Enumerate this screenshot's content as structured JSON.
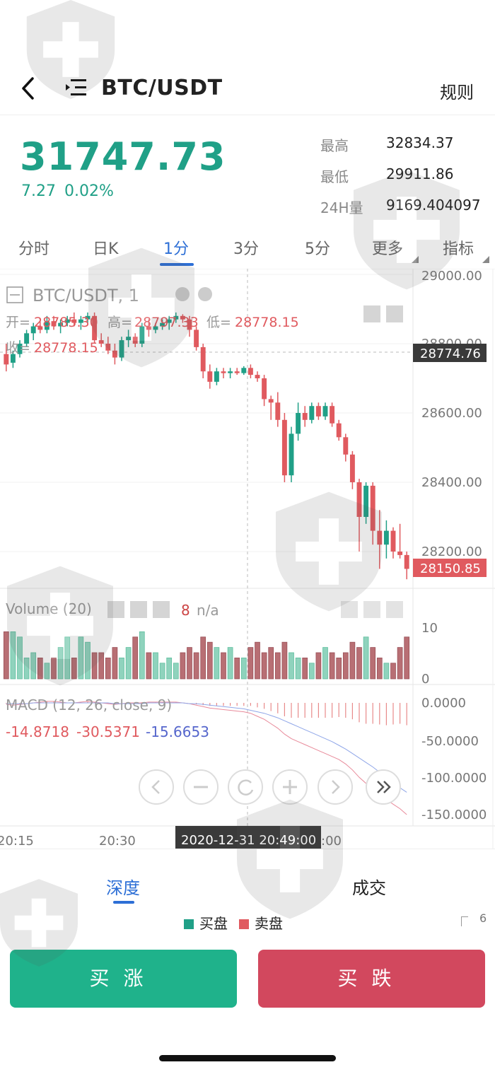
{
  "header": {
    "pair": "BTC/USDT",
    "rules_label": "规则"
  },
  "ticker": {
    "last_price": "31747.73",
    "change_abs": "7.27",
    "change_pct": "0.02%",
    "stats": [
      {
        "label": "最高",
        "value": "32834.37"
      },
      {
        "label": "最低",
        "value": "29911.86"
      },
      {
        "label": "24H量",
        "value": "9169.404097"
      }
    ]
  },
  "tabs": [
    "分时",
    "日K",
    "1分",
    "3分",
    "5分",
    "更多",
    "指标"
  ],
  "active_tab": "1分",
  "kline": {
    "header": "BTC/USDT, 1",
    "open_label": "开=",
    "open": "28785.30",
    "high_label": "高=",
    "high": "28797.33",
    "low_label": "低=",
    "low": "28778.15",
    "close_label": "收=",
    "close": "28778.15",
    "cursor_price": "28774.76",
    "last_price_tag": "28150.85",
    "cursor_time": "2020-12-31 20:49:00",
    "y_ticks": [
      "29000.00",
      "28800.00",
      "28600.00",
      "28400.00",
      "28200.00"
    ],
    "x_ticks": [
      "20:15",
      "20:30",
      ":00"
    ],
    "volume_label": "Volume (20)",
    "volume_value": "8",
    "volume_na": "n/a",
    "volume_ticks": [
      "10",
      "0"
    ],
    "macd_label": "MACD (12, 26, close, 9)",
    "macd_values": [
      "-14.8718",
      "-30.5371",
      "-15.6653"
    ],
    "macd_ticks": [
      "0.0000",
      "-50.0000",
      "-100.0000",
      "-150.0000"
    ]
  },
  "chart_data": {
    "type": "candlestick",
    "interval": "1分",
    "ylim": [
      28050,
      29000
    ],
    "candles": [
      {
        "o": 28770,
        "h": 28800,
        "l": 28720,
        "c": 28740
      },
      {
        "o": 28745,
        "h": 28780,
        "l": 28730,
        "c": 28770
      },
      {
        "o": 28770,
        "h": 28810,
        "l": 28760,
        "c": 28800
      },
      {
        "o": 28800,
        "h": 28840,
        "l": 28790,
        "c": 28830
      },
      {
        "o": 28830,
        "h": 28860,
        "l": 28810,
        "c": 28850
      },
      {
        "o": 28850,
        "h": 28870,
        "l": 28830,
        "c": 28840
      },
      {
        "o": 28840,
        "h": 28880,
        "l": 28830,
        "c": 28865
      },
      {
        "o": 28865,
        "h": 28880,
        "l": 28840,
        "c": 28850
      },
      {
        "o": 28850,
        "h": 28870,
        "l": 28830,
        "c": 28860
      },
      {
        "o": 28860,
        "h": 28880,
        "l": 28850,
        "c": 28870
      },
      {
        "o": 28870,
        "h": 28890,
        "l": 28850,
        "c": 28860
      },
      {
        "o": 28860,
        "h": 28880,
        "l": 28840,
        "c": 28870
      },
      {
        "o": 28870,
        "h": 28890,
        "l": 28860,
        "c": 28880
      },
      {
        "o": 28880,
        "h": 28890,
        "l": 28800,
        "c": 28810
      },
      {
        "o": 28810,
        "h": 28830,
        "l": 28790,
        "c": 28800
      },
      {
        "o": 28800,
        "h": 28820,
        "l": 28770,
        "c": 28780
      },
      {
        "o": 28780,
        "h": 28800,
        "l": 28740,
        "c": 28760
      },
      {
        "o": 28760,
        "h": 28820,
        "l": 28750,
        "c": 28810
      },
      {
        "o": 28810,
        "h": 28840,
        "l": 28790,
        "c": 28820
      },
      {
        "o": 28820,
        "h": 28830,
        "l": 28790,
        "c": 28800
      },
      {
        "o": 28800,
        "h": 28860,
        "l": 28790,
        "c": 28850
      },
      {
        "o": 28850,
        "h": 28870,
        "l": 28820,
        "c": 28840
      },
      {
        "o": 28840,
        "h": 28860,
        "l": 28830,
        "c": 28850
      },
      {
        "o": 28850,
        "h": 28870,
        "l": 28840,
        "c": 28860
      },
      {
        "o": 28860,
        "h": 28880,
        "l": 28840,
        "c": 28870
      },
      {
        "o": 28870,
        "h": 28890,
        "l": 28860,
        "c": 28880
      },
      {
        "o": 28880,
        "h": 28885,
        "l": 28860,
        "c": 28870
      },
      {
        "o": 28870,
        "h": 28880,
        "l": 28820,
        "c": 28840
      },
      {
        "o": 28840,
        "h": 28850,
        "l": 28780,
        "c": 28790
      },
      {
        "o": 28790,
        "h": 28800,
        "l": 28700,
        "c": 28720
      },
      {
        "o": 28720,
        "h": 28740,
        "l": 28670,
        "c": 28690
      },
      {
        "o": 28690,
        "h": 28730,
        "l": 28680,
        "c": 28720
      },
      {
        "o": 28720,
        "h": 28730,
        "l": 28700,
        "c": 28715
      },
      {
        "o": 28715,
        "h": 28730,
        "l": 28700,
        "c": 28720
      },
      {
        "o": 28720,
        "h": 28730,
        "l": 28710,
        "c": 28715
      },
      {
        "o": 28715,
        "h": 28735,
        "l": 28710,
        "c": 28730
      },
      {
        "o": 28730,
        "h": 28740,
        "l": 28700,
        "c": 28710
      },
      {
        "o": 28710,
        "h": 28720,
        "l": 28690,
        "c": 28700
      },
      {
        "o": 28700,
        "h": 28710,
        "l": 28620,
        "c": 28640
      },
      {
        "o": 28640,
        "h": 28650,
        "l": 28580,
        "c": 28630
      },
      {
        "o": 28630,
        "h": 28660,
        "l": 28560,
        "c": 28580
      },
      {
        "o": 28580,
        "h": 28600,
        "l": 28400,
        "c": 28420
      },
      {
        "o": 28420,
        "h": 28560,
        "l": 28400,
        "c": 28540
      },
      {
        "o": 28540,
        "h": 28630,
        "l": 28520,
        "c": 28600
      },
      {
        "o": 28600,
        "h": 28620,
        "l": 28560,
        "c": 28580
      },
      {
        "o": 28580,
        "h": 28630,
        "l": 28570,
        "c": 28620
      },
      {
        "o": 28620,
        "h": 28630,
        "l": 28580,
        "c": 28590
      },
      {
        "o": 28590,
        "h": 28630,
        "l": 28580,
        "c": 28620
      },
      {
        "o": 28620,
        "h": 28630,
        "l": 28560,
        "c": 28570
      },
      {
        "o": 28570,
        "h": 28580,
        "l": 28520,
        "c": 28530
      },
      {
        "o": 28530,
        "h": 28540,
        "l": 28460,
        "c": 28480
      },
      {
        "o": 28480,
        "h": 28490,
        "l": 28380,
        "c": 28400
      },
      {
        "o": 28400,
        "h": 28410,
        "l": 28200,
        "c": 28300
      },
      {
        "o": 28300,
        "h": 28400,
        "l": 28280,
        "c": 28390
      },
      {
        "o": 28390,
        "h": 28400,
        "l": 28220,
        "c": 28260
      },
      {
        "o": 28260,
        "h": 28320,
        "l": 28150,
        "c": 28220
      },
      {
        "o": 28220,
        "h": 28290,
        "l": 28180,
        "c": 28260
      },
      {
        "o": 28260,
        "h": 28270,
        "l": 28180,
        "c": 28200
      },
      {
        "o": 28200,
        "h": 28280,
        "l": 28180,
        "c": 28190
      },
      {
        "o": 28190,
        "h": 28200,
        "l": 28120,
        "c": 28150
      }
    ],
    "volume": [
      9,
      9,
      8,
      4,
      5,
      4,
      3,
      4,
      6,
      8,
      4,
      8,
      7,
      5,
      5,
      4,
      6,
      4,
      6,
      8,
      9,
      5,
      5,
      3,
      4,
      3,
      5,
      6,
      5,
      8,
      7,
      6,
      5,
      6,
      4,
      4,
      6,
      7,
      5,
      6,
      5,
      7,
      5,
      4,
      4,
      3,
      5,
      6,
      5,
      4,
      5,
      7,
      6,
      8,
      6,
      4,
      3,
      3,
      6,
      8
    ],
    "macd_dif": [
      -2,
      -3,
      -2,
      -1,
      0,
      1,
      2,
      2,
      1,
      0,
      0,
      1,
      2,
      1,
      0,
      -1,
      -2,
      -1,
      0,
      0,
      0,
      1,
      1,
      1,
      1,
      1,
      0,
      -1,
      -3,
      -5,
      -7,
      -8,
      -9,
      -10,
      -11,
      -12,
      -14,
      -18,
      -22,
      -28,
      -34,
      -42,
      -48,
      -52,
      -56,
      -60,
      -64,
      -68,
      -72,
      -76,
      -82,
      -90,
      -100,
      -108,
      -114,
      -122,
      -130,
      -136,
      -142,
      -150
    ],
    "macd_dea": [
      -1,
      -1,
      -1,
      -1,
      0,
      0,
      0,
      0,
      0,
      0,
      0,
      0,
      0,
      0,
      0,
      0,
      -1,
      -1,
      -1,
      -1,
      -1,
      0,
      0,
      0,
      0,
      0,
      0,
      -1,
      -1,
      -2,
      -3,
      -4,
      -5,
      -6,
      -7,
      -8,
      -10,
      -12,
      -14,
      -17,
      -20,
      -24,
      -28,
      -32,
      -36,
      -40,
      -44,
      -48,
      -52,
      -57,
      -62,
      -68,
      -74,
      -80,
      -86,
      -93,
      -100,
      -107,
      -114,
      -120
    ],
    "macd_hist": [
      -1,
      -2,
      -1,
      0,
      0,
      1,
      2,
      2,
      1,
      0,
      0,
      1,
      2,
      1,
      0,
      -1,
      -1,
      0,
      1,
      1,
      1,
      1,
      1,
      1,
      1,
      1,
      0,
      0,
      -2,
      -3,
      -4,
      -4,
      -4,
      -4,
      -4,
      -4,
      -4,
      -6,
      -8,
      -11,
      -14,
      -18,
      -20,
      -20,
      -20,
      -20,
      -20,
      -20,
      -20,
      -19,
      -20,
      -22,
      -26,
      -28,
      -28,
      -29,
      -30,
      -29,
      -28,
      -30
    ]
  },
  "depth_tabs": [
    "深度",
    "成交"
  ],
  "depth_legend": [
    "买盘",
    "卖盘"
  ],
  "depth_y": "6",
  "actions": {
    "buy": "买涨",
    "sell": "买跌"
  },
  "colors": {
    "up": "#20a087",
    "down": "#e05a5f",
    "accent": "#2d6fd6"
  }
}
